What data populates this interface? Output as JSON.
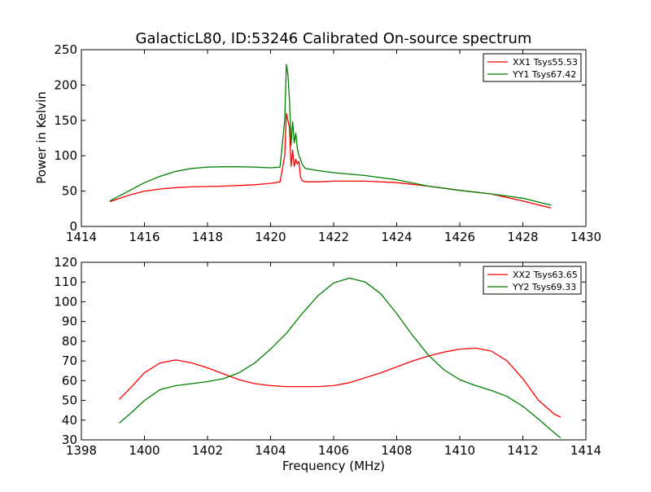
{
  "chart_data": {
    "title": "GalacticL80, ID:53246 Calibrated On-source spectrum",
    "xlabel": "Frequency (MHz)",
    "ylabel": "Power in Kelvin",
    "panels": [
      {
        "type": "line",
        "xlim": [
          1414,
          1430
        ],
        "ylim": [
          0,
          250
        ],
        "xticks": [
          "1414",
          "1416",
          "1418",
          "1420",
          "1422",
          "1424",
          "1426",
          "1428",
          "1430"
        ],
        "yticks": [
          "0",
          "50",
          "100",
          "150",
          "200",
          "250"
        ],
        "grid": false,
        "legend": "top-right",
        "series": [
          {
            "name": "XX1 Tsys55.53",
            "color": "#ff0000",
            "x": [
              1414.9,
              1415.5,
              1416.0,
              1416.5,
              1417.0,
              1417.5,
              1418.0,
              1418.5,
              1419.0,
              1419.5,
              1420.0,
              1420.3,
              1420.45,
              1420.5,
              1420.6,
              1420.65,
              1420.7,
              1420.75,
              1420.8,
              1420.85,
              1420.9,
              1420.95,
              1421.0,
              1421.1,
              1421.5,
              1422.0,
              1423.0,
              1424.0,
              1425.0,
              1426.0,
              1427.0,
              1428.0,
              1428.9
            ],
            "y": [
              35,
              44,
              50,
              53,
              55,
              56,
              56.5,
              57,
              58,
              59,
              61,
              63,
              100,
              160,
              140,
              85,
              108,
              85,
              95,
              88,
              92,
              70,
              65,
              63,
              63,
              64,
              64,
              62,
              57,
              51,
              46,
              36,
              26
            ]
          },
          {
            "name": "YY1 Tsys67.42",
            "color": "#008000",
            "x": [
              1414.9,
              1415.5,
              1416.0,
              1416.5,
              1417.0,
              1417.5,
              1418.0,
              1418.5,
              1419.0,
              1419.5,
              1420.0,
              1420.3,
              1420.45,
              1420.5,
              1420.55,
              1420.6,
              1420.65,
              1420.7,
              1420.75,
              1420.8,
              1420.85,
              1420.9,
              1420.95,
              1421.0,
              1421.1,
              1421.5,
              1422.0,
              1423.0,
              1424.0,
              1425.0,
              1426.0,
              1427.0,
              1428.0,
              1428.9
            ],
            "y": [
              36,
              50,
              62,
              71,
              78,
              82,
              84,
              84.5,
              84.5,
              84,
              83,
              84,
              150,
              229,
              215,
              180,
              115,
              148,
              118,
              132,
              110,
              100,
              95,
              88,
              82,
              79,
              76,
              72,
              66,
              57,
              51,
              46,
              40,
              30
            ]
          }
        ]
      },
      {
        "type": "line",
        "xlim": [
          1398,
          1414
        ],
        "ylim": [
          30,
          120
        ],
        "xticks": [
          "1398",
          "1400",
          "1402",
          "1404",
          "1406",
          "1408",
          "1410",
          "1412",
          "1414"
        ],
        "yticks": [
          "30",
          "40",
          "50",
          "60",
          "70",
          "80",
          "90",
          "100",
          "110",
          "120"
        ],
        "grid": false,
        "legend": "top-right",
        "series": [
          {
            "name": "XX2 Tsys63.65",
            "color": "#ff0000",
            "x": [
              1399.2,
              1399.6,
              1400.0,
              1400.5,
              1401.0,
              1401.5,
              1402.0,
              1402.5,
              1403.0,
              1403.5,
              1404.0,
              1404.5,
              1405.0,
              1405.5,
              1406.0,
              1406.5,
              1407.0,
              1407.5,
              1408.0,
              1408.5,
              1409.0,
              1409.5,
              1410.0,
              1410.5,
              1411.0,
              1411.5,
              1412.0,
              1412.5,
              1413.0,
              1413.2
            ],
            "y": [
              50.5,
              57,
              64,
              69,
              70.5,
              69,
              66.5,
              63.5,
              60.5,
              58.5,
              57.5,
              57,
              57,
              57,
              57.5,
              59,
              61.5,
              64,
              67,
              70,
              72.5,
              74.5,
              76,
              76.5,
              75,
              70,
              61,
              50,
              43,
              41.5
            ]
          },
          {
            "name": "YY2 Tsys69.33",
            "color": "#008000",
            "x": [
              1399.2,
              1399.6,
              1400.0,
              1400.5,
              1401.0,
              1401.5,
              1402.0,
              1402.5,
              1403.0,
              1403.5,
              1404.0,
              1404.5,
              1405.0,
              1405.5,
              1406.0,
              1406.5,
              1407.0,
              1407.5,
              1408.0,
              1408.5,
              1409.0,
              1409.5,
              1410.0,
              1410.5,
              1411.0,
              1411.5,
              1412.0,
              1412.5,
              1413.0,
              1413.2
            ],
            "y": [
              38.5,
              44,
              50,
              55.5,
              57.5,
              58.5,
              59.5,
              61,
              64,
              69,
              76,
              84,
              94,
              103,
              109.5,
              112,
              110,
              104,
              94,
              83,
              73,
              65.5,
              60.5,
              57.5,
              55,
              52,
              47,
              40.5,
              33.5,
              31
            ]
          }
        ]
      }
    ]
  }
}
